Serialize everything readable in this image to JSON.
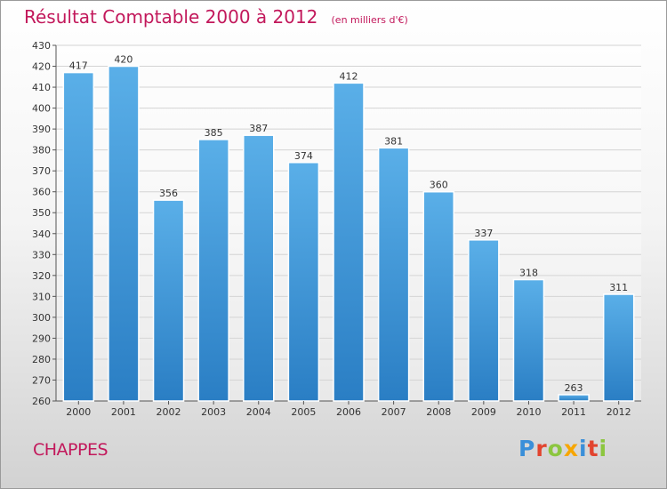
{
  "title": "Résultat Comptable 2000 à 2012",
  "subtitle": "(en milliers d'€)",
  "commune": "CHAPPES",
  "logo": {
    "p": "P",
    "r": "r",
    "o": "o",
    "x": "x",
    "i": "i",
    "t": "t",
    "i2": "i"
  },
  "colors": {
    "bar_top": "#5aafe8",
    "bar_bottom": "#2a7ec4",
    "accent": "#c2185b"
  },
  "chart_data": {
    "type": "bar",
    "title": "Résultat Comptable 2000 à 2012",
    "subtitle": "(en milliers d'€)",
    "categories": [
      "2000",
      "2001",
      "2002",
      "2003",
      "2004",
      "2005",
      "2006",
      "2007",
      "2008",
      "2009",
      "2010",
      "2011",
      "2012"
    ],
    "values": [
      417,
      420,
      356,
      385,
      387,
      374,
      412,
      381,
      360,
      337,
      318,
      263,
      311
    ],
    "ylim": [
      260,
      430
    ],
    "yticks": [
      260,
      270,
      280,
      290,
      300,
      310,
      320,
      330,
      340,
      350,
      360,
      370,
      380,
      390,
      400,
      410,
      420,
      430
    ],
    "grid": true,
    "xlabel": "",
    "ylabel": ""
  }
}
